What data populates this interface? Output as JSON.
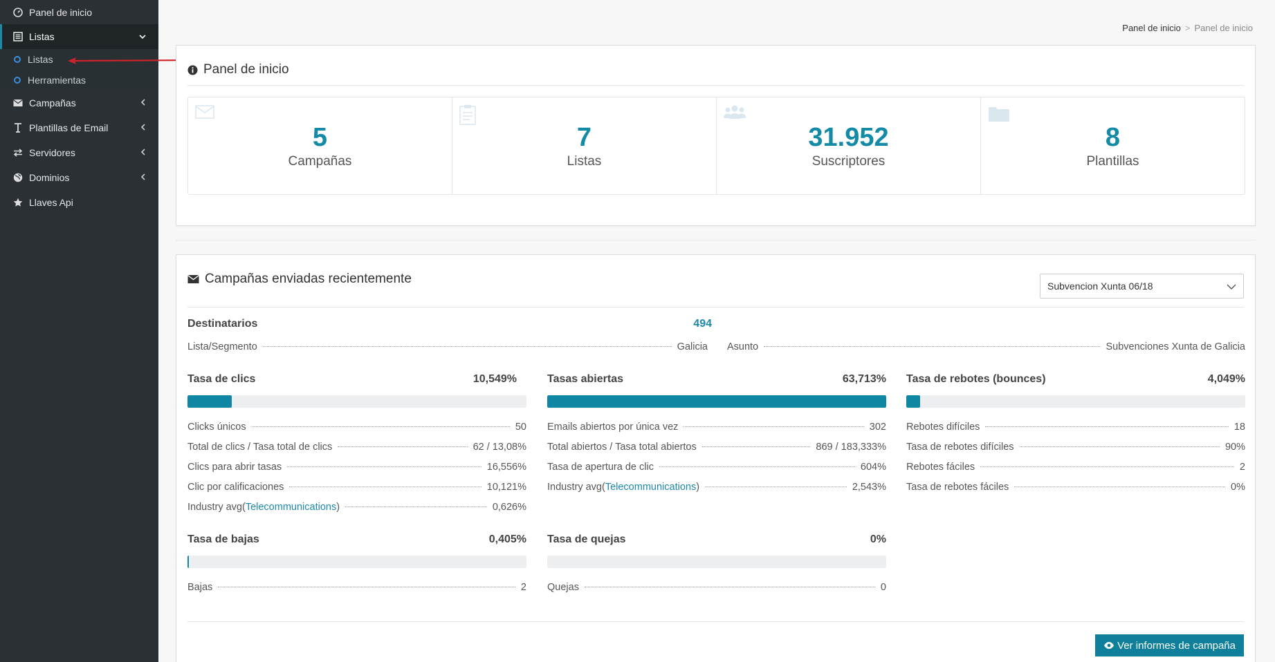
{
  "sidebar": {
    "items": [
      {
        "label": "Panel de inicio",
        "icon": "dashboard-icon"
      },
      {
        "label": "Listas",
        "icon": "list-icon"
      },
      {
        "label": "Campañas",
        "icon": "envelope-icon"
      },
      {
        "label": "Plantillas de Email",
        "icon": "text-cursor-icon"
      },
      {
        "label": "Servidores",
        "icon": "exchange-icon"
      },
      {
        "label": "Dominios",
        "icon": "globe-icon"
      },
      {
        "label": "Llaves Api",
        "icon": "star-icon"
      }
    ],
    "submenu": [
      {
        "label": "Listas"
      },
      {
        "label": "Herramientas"
      }
    ]
  },
  "breadcrumb": {
    "parent": "Panel de inicio",
    "separator": ">",
    "current": "Panel de inicio"
  },
  "overview": {
    "title": "Panel de inicio",
    "stats": [
      {
        "value": "5",
        "label": "Campañas",
        "icon": "envelope-icon"
      },
      {
        "value": "7",
        "label": "Listas",
        "icon": "clipboard-icon"
      },
      {
        "value": "31.952",
        "label": "Suscriptores",
        "icon": "users-icon"
      },
      {
        "value": "8",
        "label": "Plantillas",
        "icon": "folder-icon"
      }
    ]
  },
  "recent": {
    "title": "Campañas enviadas recientemente",
    "selected_campaign": "Subvencion Xunta 06/18",
    "recipients_label": "Destinatarios",
    "recipients_value": "494",
    "list_label": "Lista/Segmento",
    "list_value": "Galicia",
    "subject_label": "Asunto",
    "subject_value": "Subvenciones Xunta de Galicia",
    "clicks": {
      "title": "Tasa de clics",
      "rate": "10,549%",
      "fill_percent": 13,
      "rows": [
        {
          "k": "Clicks únicos",
          "v": "50"
        },
        {
          "k": "Total de clics / Tasa total de clics",
          "v": "62 / 13,08%"
        },
        {
          "k": "Clics para abrir tasas",
          "v": "16,556%"
        },
        {
          "k": "Clic por calificaciones",
          "v": "10,121%"
        }
      ],
      "industry_prefix": "Industry avg(",
      "industry_link": "Telecommunications",
      "industry_suffix": ")",
      "industry_value": "0,626%"
    },
    "opens": {
      "title": "Tasas abiertas",
      "rate": "63,713%",
      "fill_percent": 100,
      "rows": [
        {
          "k": "Emails abiertos por única vez",
          "v": "302"
        },
        {
          "k": "Total abiertos / Tasa total abiertos",
          "v": "869 / 183,333%"
        },
        {
          "k": "Tasa de apertura de clic",
          "v": "604%"
        }
      ],
      "industry_prefix": "Industry avg(",
      "industry_link": "Telecommunications",
      "industry_suffix": ")",
      "industry_value": "2,543%"
    },
    "bounces": {
      "title": "Tasa de rebotes (bounces)",
      "rate": "4,049%",
      "fill_percent": 4,
      "rows": [
        {
          "k": "Rebotes difíciles",
          "v": "18"
        },
        {
          "k": "Tasa de rebotes difíciles",
          "v": "90%"
        },
        {
          "k": "Rebotes fáciles",
          "v": "2"
        },
        {
          "k": "Tasa de rebotes fáciles",
          "v": "0%"
        }
      ]
    },
    "unsubs": {
      "title": "Tasa de bajas",
      "rate": "0,405%",
      "fill_percent": 0.5,
      "row": {
        "k": "Bajas",
        "v": "2"
      }
    },
    "complaints": {
      "title": "Tasa de quejas",
      "rate": "0%",
      "fill_percent": 0,
      "row": {
        "k": "Quejas",
        "v": "0"
      }
    },
    "button_label": "Ver informes de campaña"
  },
  "colors": {
    "accent": "#0e86a4",
    "sidebar_bg": "#2a3034",
    "annotation_arrow": "#d0222a"
  }
}
